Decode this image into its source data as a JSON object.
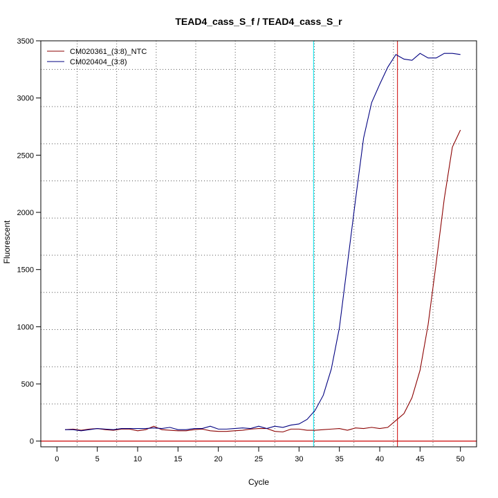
{
  "chart_data": {
    "type": "line",
    "title": "TEAD4_cass_S_f / TEAD4_cass_S_r",
    "xlabel": "Cycle",
    "ylabel": "Fluorescent",
    "xlim": [
      -2,
      52
    ],
    "ylim": [
      -50,
      3500
    ],
    "x_ticks": [
      0,
      5,
      10,
      15,
      20,
      25,
      30,
      35,
      40,
      45,
      50
    ],
    "y_ticks": [
      0,
      500,
      1000,
      1500,
      2000,
      2500,
      3000,
      3500
    ],
    "grid": "dotted",
    "legend": {
      "position": "top-left"
    },
    "threshold_y": 0,
    "threshold_color": "#cc0000",
    "vertical_lines": [
      {
        "x": 31.8,
        "color": "#00e5ee"
      },
      {
        "x": 42.2,
        "color": "#cc0000"
      }
    ],
    "series": [
      {
        "name": "CM020361_(3:8)_NTC",
        "color": "#8b0000",
        "x": [
          1,
          2,
          3,
          4,
          5,
          6,
          7,
          8,
          9,
          10,
          11,
          12,
          13,
          14,
          15,
          16,
          17,
          18,
          19,
          20,
          21,
          22,
          23,
          24,
          25,
          26,
          27,
          28,
          29,
          30,
          31,
          32,
          33,
          34,
          35,
          36,
          37,
          38,
          39,
          40,
          41,
          42,
          43,
          44,
          45,
          46,
          47,
          48,
          49,
          50
        ],
        "y": [
          100,
          105,
          95,
          105,
          110,
          100,
          95,
          105,
          105,
          90,
          100,
          130,
          100,
          95,
          90,
          90,
          100,
          105,
          90,
          85,
          85,
          90,
          95,
          105,
          110,
          110,
          85,
          80,
          105,
          105,
          95,
          95,
          100,
          105,
          110,
          95,
          115,
          110,
          120,
          110,
          120,
          180,
          240,
          380,
          620,
          1020,
          1560,
          2120,
          2570,
          2720
        ]
      },
      {
        "name": "CM020404_(3:8)",
        "color": "#000080",
        "x": [
          1,
          2,
          3,
          4,
          5,
          6,
          7,
          8,
          9,
          10,
          11,
          12,
          13,
          14,
          15,
          16,
          17,
          18,
          19,
          20,
          21,
          22,
          23,
          24,
          25,
          26,
          27,
          28,
          29,
          30,
          31,
          32,
          33,
          34,
          35,
          36,
          37,
          38,
          39,
          40,
          41,
          42,
          43,
          44,
          45,
          46,
          47,
          48,
          49,
          50
        ],
        "y": [
          100,
          100,
          90,
          100,
          110,
          105,
          100,
          110,
          110,
          110,
          110,
          115,
          110,
          120,
          100,
          100,
          110,
          110,
          130,
          105,
          105,
          110,
          115,
          110,
          130,
          110,
          130,
          120,
          140,
          150,
          190,
          270,
          400,
          630,
          990,
          1550,
          2110,
          2650,
          2960,
          3120,
          3270,
          3380,
          3340,
          3330,
          3390,
          3350,
          3350,
          3390,
          3390,
          3380
        ]
      }
    ]
  }
}
